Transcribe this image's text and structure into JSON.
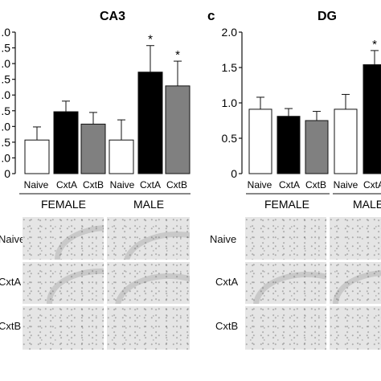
{
  "panels": {
    "ca3": {
      "letter": "",
      "title": "CA3"
    },
    "dg": {
      "letter": "c",
      "title": "DG"
    }
  },
  "sex_groups": {
    "female": "FEMALE",
    "male": "MALE"
  },
  "bar_colors": {
    "Naive": "#ffffff",
    "CxtA": "#000000",
    "CxtB": "#808080"
  },
  "photo_rows": [
    "Naive",
    "CxtA",
    "CxtB"
  ],
  "photo_rows_left": [
    "Naive",
    "CxtA",
    "CxtB"
  ],
  "chart_data": [
    {
      "type": "bar",
      "title": "CA3",
      "groups": [
        "FEMALE",
        "MALE"
      ],
      "categories": [
        "Naive",
        "CxtA",
        "CxtB"
      ],
      "tick_labels": [
        ".0",
        ".5",
        ".0",
        ".5",
        ".0",
        ".5",
        ".0",
        ".5",
        ".0",
        "0"
      ],
      "ylim": [
        0,
        4.0
      ],
      "bars": [
        {
          "group": "FEMALE",
          "category": "Naive",
          "value": 0.95,
          "error": 0.37,
          "significant": false
        },
        {
          "group": "FEMALE",
          "category": "CxtA",
          "value": 1.75,
          "error": 0.3,
          "significant": false
        },
        {
          "group": "FEMALE",
          "category": "CxtB",
          "value": 1.4,
          "error": 0.33,
          "significant": false
        },
        {
          "group": "MALE",
          "category": "Naive",
          "value": 0.95,
          "error": 0.57,
          "significant": false
        },
        {
          "group": "MALE",
          "category": "CxtA",
          "value": 2.87,
          "error": 0.75,
          "significant": true
        },
        {
          "group": "MALE",
          "category": "CxtB",
          "value": 2.48,
          "error": 0.7,
          "significant": true
        }
      ],
      "significance_marker": "*"
    },
    {
      "type": "bar",
      "title": "DG",
      "groups": [
        "FEMALE",
        "MALE"
      ],
      "categories": [
        "Naive",
        "CxtA",
        "CxtB"
      ],
      "tick_labels": [
        "0",
        "0.5",
        "1.0",
        "1.5",
        "2.0"
      ],
      "ylim": [
        0,
        2.0
      ],
      "bars": [
        {
          "group": "FEMALE",
          "category": "Naive",
          "value": 0.91,
          "error": 0.17,
          "significant": false
        },
        {
          "group": "FEMALE",
          "category": "CxtA",
          "value": 0.81,
          "error": 0.11,
          "significant": false
        },
        {
          "group": "FEMALE",
          "category": "CxtB",
          "value": 0.75,
          "error": 0.13,
          "significant": false
        },
        {
          "group": "MALE",
          "category": "Naive",
          "value": 0.91,
          "error": 0.21,
          "significant": false
        },
        {
          "group": "MALE",
          "category": "CxtA",
          "value": 1.54,
          "error": 0.2,
          "significant": true
        }
      ],
      "significance_marker": "*"
    }
  ]
}
